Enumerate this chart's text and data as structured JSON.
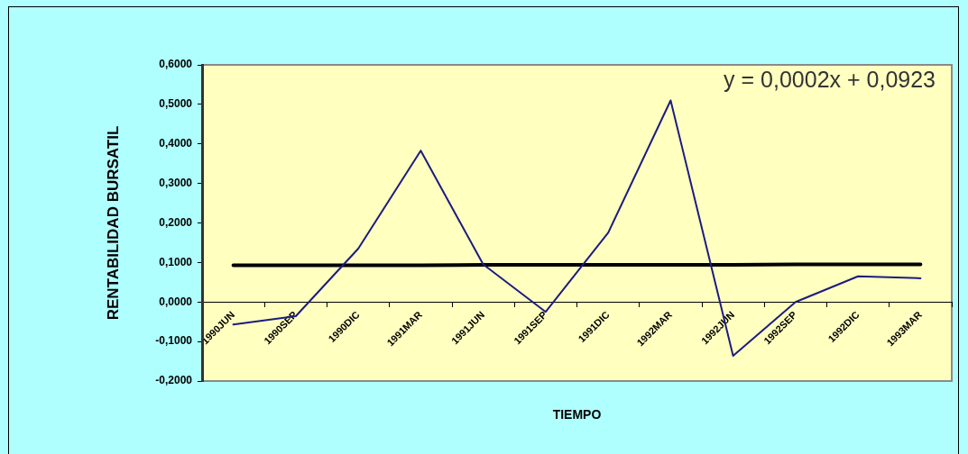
{
  "chart_data": {
    "type": "line",
    "xlabel": "TIEMPO",
    "ylabel": "RENTABILIDAD BURSATIL",
    "categories": [
      "1990JUN",
      "1990SEP",
      "1990DIC",
      "1991MAR",
      "1991JUN",
      "1991SEP",
      "1991DIC",
      "1992MAR",
      "1992JUN",
      "1992SEP",
      "1992DIC",
      "1993MAR"
    ],
    "series": [
      {
        "color": "#1c1c80",
        "values": [
          -0.057,
          -0.036,
          0.135,
          0.383,
          0.095,
          -0.025,
          0.175,
          0.51,
          -0.136,
          0.0,
          0.065,
          0.06
        ]
      },
      {
        "type": "line",
        "color": "#000000",
        "values": [
          0.093,
          0.093,
          0.093,
          0.093,
          0.094,
          0.094,
          0.094,
          0.094,
          0.094,
          0.095,
          0.095,
          0.095
        ]
      }
    ],
    "ylim": [
      -0.2,
      0.6
    ],
    "yticks": [
      {
        "value": -0.2,
        "label": "-0,2000"
      },
      {
        "value": -0.1,
        "label": "-0,1000"
      },
      {
        "value": 0,
        "label": "0,0000"
      },
      {
        "value": 0.1,
        "label": "0,1000"
      },
      {
        "value": 0.2,
        "label": "0,2000"
      },
      {
        "value": 0.3,
        "label": "0,3000"
      },
      {
        "value": 0.4,
        "label": "0,4000"
      },
      {
        "value": 0.5,
        "label": "0,5000"
      },
      {
        "value": 0.6,
        "label": "0,6000"
      }
    ],
    "annotations": [
      "y = 0,0002x + 0,0923"
    ],
    "marker": "none",
    "legend": false
  }
}
